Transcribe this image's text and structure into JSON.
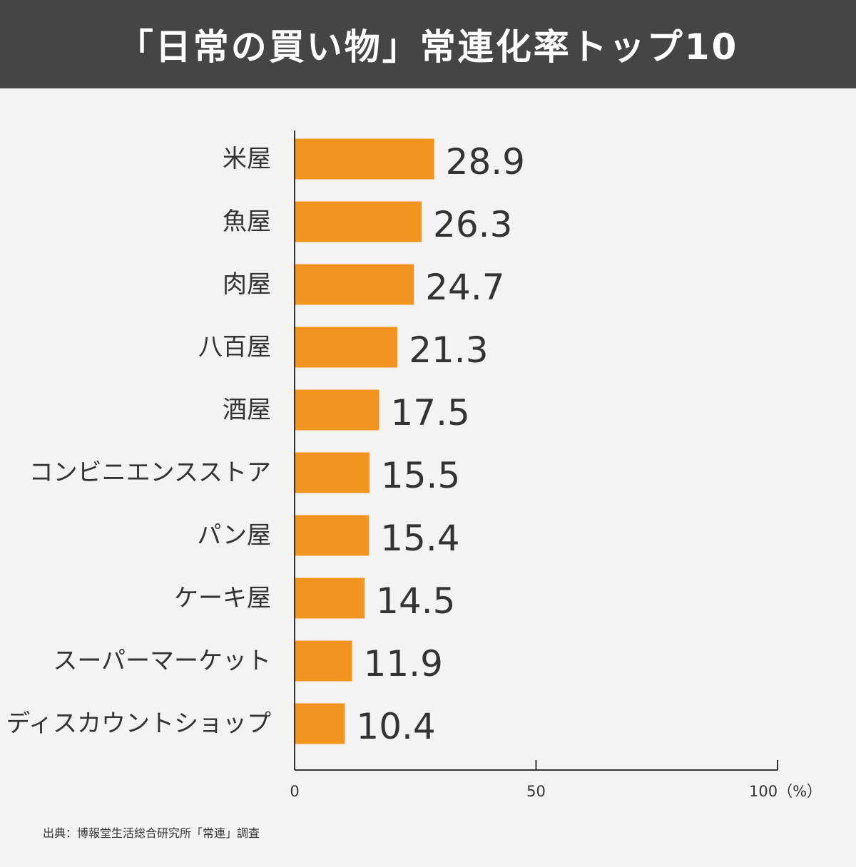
{
  "title": "「日常の買い物」常連化率トップ10",
  "source": "出典：博報堂生活総合研究所「常連」調査",
  "chart_data": {
    "type": "bar",
    "orientation": "horizontal",
    "title": "「日常の買い物」常連化率トップ10",
    "xlabel": "",
    "ylabel": "",
    "categories": [
      "米屋",
      "魚屋",
      "肉屋",
      "八百屋",
      "酒屋",
      "コンビニエンスストア",
      "パン屋",
      "ケーキ屋",
      "スーパーマーケット",
      "ディスカウントショップ"
    ],
    "values": [
      28.9,
      26.3,
      24.7,
      21.3,
      17.5,
      15.5,
      15.4,
      14.5,
      11.9,
      10.4
    ],
    "value_labels": [
      "28.9",
      "26.3",
      "24.7",
      "21.3",
      "17.5",
      "15.5",
      "15.4",
      "14.5",
      "11.9",
      "10.4"
    ],
    "xlim": [
      0,
      100
    ],
    "x_ticks": [
      "0",
      "50",
      "100（%）"
    ],
    "grid": false,
    "bar_color": "#f39320"
  }
}
